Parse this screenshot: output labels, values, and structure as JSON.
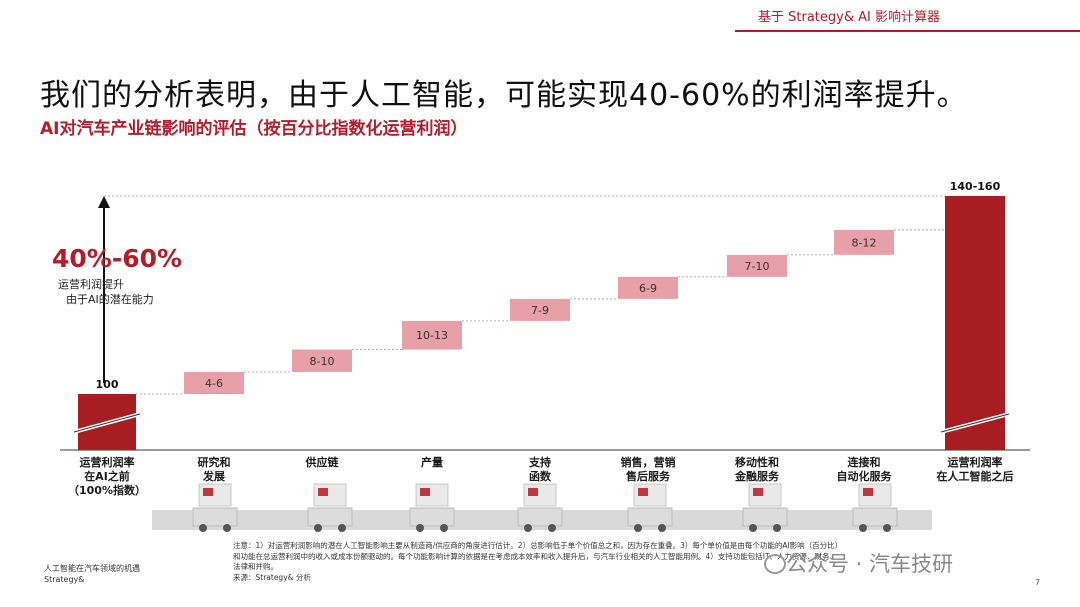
{
  "header": {
    "tag": "基于 Strategy& AI 影响计算器"
  },
  "title": "我们的分析表明，由于人工智能，可能实现40-60%的利润率提升。",
  "subtitle": "AI对汽车产业链影响的评估（按百分比指数化运营利润）",
  "callout": {
    "value": "40%-60%",
    "line1": "运营利润提升",
    "line2": "由于AI的潜在能力"
  },
  "chart_data": {
    "type": "bar",
    "subtype": "waterfall",
    "categories": [
      "运营利润率\n在AI之前\n（100%指数）",
      "研究和\n发展",
      "供应链",
      "产量",
      "支持\n函数",
      "销售，营销\n售后服务",
      "移动性和\n金融服务",
      "连接和\n自动化服务",
      "运营利润率\n在人工智能之后"
    ],
    "base": 100,
    "base_label": "100",
    "increments": [
      {
        "label": "4-6",
        "low": 4,
        "high": 6
      },
      {
        "label": "8-10",
        "low": 8,
        "high": 10
      },
      {
        "label": "10-13",
        "low": 10,
        "high": 13
      },
      {
        "label": "7-9",
        "low": 7,
        "high": 9
      },
      {
        "label": "6-9",
        "low": 6,
        "high": 9
      },
      {
        "label": "7-10",
        "low": 7,
        "high": 10
      },
      {
        "label": "8-12",
        "low": 8,
        "high": 12
      }
    ],
    "total_label": "140-160",
    "total_low": 140,
    "total_high": 160,
    "colors": {
      "total": "#a71d22",
      "increment": "#e8a0a8"
    }
  },
  "illustrations": [
    "desk-icon",
    "truck-icon",
    "robot-arm-icon",
    "gears-icon",
    "phone-icon",
    "car-service-icon",
    "car-showroom-icon"
  ],
  "notes": "注意：1）对运营利润影响的潜在人工智能影响主要从制造商/供应商的角度进行估计。2）总影响低于单个价值总之和，因为存在重叠。3）每个单价值是由每个功能的AI影响（百分比）和功能在总运营利润中的收入或成本份额驱动的。每个功能影响计算的依据是在考虑成本效率和收入提升后，与汽车行业相关的人工智能用例。4）支持功能包括IT、人力资源、财务、法律和并购。",
  "source": "来源：Strategy& 分析",
  "footer": {
    "line1": "人工智能在汽车领域的机遇",
    "line2": "Strategy&"
  },
  "watermark": "公众号 · 汽车技研",
  "page_number": "7"
}
